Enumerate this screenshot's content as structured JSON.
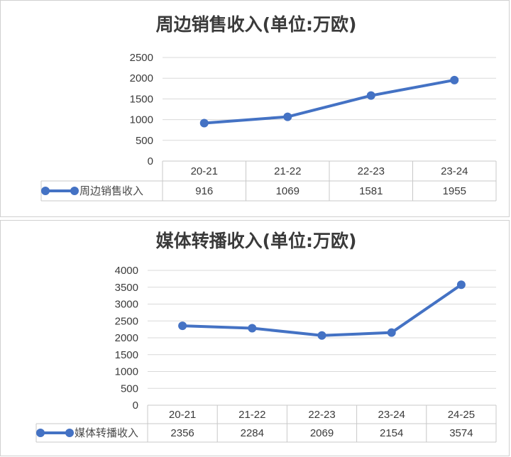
{
  "colors": {
    "series": "#4472C4",
    "grid": "#d9d9d9",
    "text": "#3a3a3a"
  },
  "chart_data": [
    {
      "type": "line",
      "title": "周边销售收入(单位:万欧)",
      "categories": [
        "20-21",
        "21-22",
        "22-23",
        "23-24"
      ],
      "series": [
        {
          "name": "周边销售收入",
          "values": [
            916,
            1069,
            1581,
            1955
          ]
        }
      ],
      "ylim": [
        0,
        2500
      ],
      "yticks": [
        0,
        500,
        1000,
        1500,
        2000,
        2500
      ],
      "grid": true,
      "legend": "data-table"
    },
    {
      "type": "line",
      "title": "媒体转播收入(单位:万欧)",
      "categories": [
        "20-21",
        "21-22",
        "22-23",
        "23-24",
        "24-25"
      ],
      "series": [
        {
          "name": "媒体转播收入",
          "values": [
            2356,
            2284,
            2069,
            2154,
            3574
          ]
        }
      ],
      "ylim": [
        0,
        4000
      ],
      "yticks": [
        0,
        500,
        1000,
        1500,
        2000,
        2500,
        3000,
        3500,
        4000
      ],
      "grid": true,
      "legend": "data-table"
    }
  ]
}
